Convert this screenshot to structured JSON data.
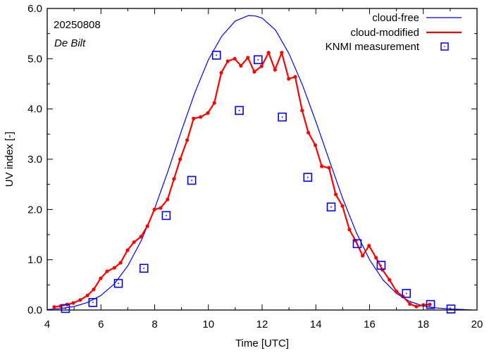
{
  "chart_data": {
    "type": "line",
    "annotations": {
      "date": "20250808",
      "location": "De Bilt"
    },
    "xlabel": "Time  [UTC]",
    "ylabel": "UV index  [-]",
    "xlim": [
      4,
      20
    ],
    "ylim": [
      0,
      6
    ],
    "xticks": [
      "4",
      "6",
      "8",
      "10",
      "12",
      "14",
      "16",
      "18",
      "20"
    ],
    "yticks": [
      "0.0",
      "1.0",
      "2.0",
      "3.0",
      "4.0",
      "5.0",
      "6.0"
    ],
    "legend_position": "top-right",
    "series": [
      {
        "name": "cloud-free",
        "color": "#0000ff",
        "style": "line",
        "x": [
          4.0,
          4.5,
          5.0,
          5.5,
          6.0,
          6.5,
          7.0,
          7.5,
          8.0,
          8.5,
          9.0,
          9.5,
          10.0,
          10.5,
          11.0,
          11.5,
          11.75,
          12.0,
          12.5,
          13.0,
          13.5,
          14.0,
          14.5,
          15.0,
          15.5,
          16.0,
          16.5,
          17.0,
          17.5,
          18.0,
          18.5,
          19.0,
          19.5,
          19.8
        ],
        "y": [
          0.01,
          0.03,
          0.07,
          0.15,
          0.29,
          0.52,
          0.88,
          1.38,
          2.02,
          2.77,
          3.57,
          4.33,
          4.98,
          5.45,
          5.75,
          5.86,
          5.85,
          5.81,
          5.57,
          5.1,
          4.48,
          3.75,
          2.98,
          2.22,
          1.55,
          1.0,
          0.6,
          0.33,
          0.17,
          0.08,
          0.04,
          0.02,
          0.01,
          0.0
        ]
      },
      {
        "name": "cloud-modified",
        "color": "#ff0000",
        "style": "line-points",
        "x": [
          4.26,
          4.5,
          4.74,
          4.97,
          5.23,
          5.5,
          5.73,
          5.99,
          6.23,
          6.5,
          6.73,
          6.99,
          7.23,
          7.49,
          7.73,
          7.99,
          8.22,
          8.48,
          8.72,
          8.95,
          9.21,
          9.45,
          9.71,
          9.98,
          10.22,
          10.48,
          10.72,
          10.98,
          11.21,
          11.47,
          11.71,
          11.98,
          12.24,
          12.48,
          12.73,
          12.99,
          13.23,
          13.49,
          13.72,
          13.98,
          14.22,
          14.49,
          14.74,
          14.99,
          15.25,
          15.48,
          15.74,
          15.98,
          16.24,
          16.48,
          16.74,
          17.0,
          17.24,
          17.5,
          17.74,
          18.0,
          18.24
        ],
        "y": [
          0.06,
          0.08,
          0.11,
          0.14,
          0.2,
          0.29,
          0.41,
          0.63,
          0.77,
          0.84,
          0.94,
          1.19,
          1.35,
          1.46,
          1.67,
          2.0,
          2.03,
          2.2,
          2.61,
          3.0,
          3.38,
          3.81,
          3.84,
          3.92,
          4.12,
          4.72,
          4.95,
          5.0,
          4.86,
          5.02,
          4.74,
          4.85,
          5.12,
          4.78,
          5.12,
          4.6,
          4.64,
          3.97,
          3.53,
          3.28,
          2.86,
          2.83,
          2.3,
          2.07,
          1.6,
          1.38,
          1.08,
          1.28,
          1.04,
          0.8,
          0.6,
          0.37,
          0.27,
          0.12,
          0.07,
          0.1,
          0.11
        ]
      },
      {
        "name": "KNMI measurement",
        "color": "#0000ff",
        "style": "square-markers",
        "x": [
          4.68,
          5.7,
          6.65,
          7.6,
          8.43,
          9.38,
          10.3,
          11.15,
          11.85,
          12.75,
          13.7,
          14.57,
          15.54,
          16.43,
          17.37,
          18.27,
          19.03
        ],
        "y": [
          0.03,
          0.15,
          0.53,
          0.83,
          1.88,
          2.58,
          5.07,
          3.97,
          4.98,
          3.84,
          2.64,
          2.05,
          1.32,
          0.89,
          0.33,
          0.11,
          0.02
        ]
      }
    ]
  }
}
